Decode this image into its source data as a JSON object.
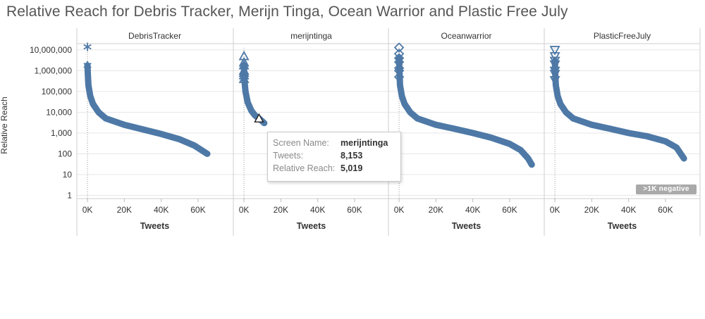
{
  "title": "Relative Reach for Debris Tracker, Merijn Tinga, Ocean Warrior and Plastic Free July",
  "ylabel": "Relative Reach",
  "xlabel": "Tweets",
  "colors": {
    "mark": "#4e79a7",
    "highlight_outline": "#222222",
    "grid": "#e6e6e6",
    "border": "#cfcfcf"
  },
  "chart_data": {
    "type": "scatter",
    "yscale": "log",
    "xlim": [
      -5000,
      78000
    ],
    "ylim": [
      0.7,
      20000000
    ],
    "y_ticks": [
      1,
      10,
      100,
      1000,
      10000,
      100000,
      1000000,
      10000000
    ],
    "y_tick_labels": [
      "1",
      "10",
      "100",
      "1,000",
      "10,000",
      "100,000",
      "1,000,000",
      "10,000,000"
    ],
    "x_ticks": [
      0,
      20000,
      40000,
      60000
    ],
    "x_tick_labels": [
      "0K",
      "20K",
      "40K",
      "60K"
    ],
    "grid": "horizontal",
    "panels": [
      {
        "name": "DebrisTracker",
        "shape": "asterisk",
        "n_points": 65000,
        "curve": [
          [
            0,
            14000000
          ],
          [
            0,
            1800000
          ],
          [
            200,
            700000
          ],
          [
            500,
            200000
          ],
          [
            1500,
            60000
          ],
          [
            3000,
            25000
          ],
          [
            6000,
            10000
          ],
          [
            10000,
            5000
          ],
          [
            20000,
            2500
          ],
          [
            30000,
            1500
          ],
          [
            40000,
            900
          ],
          [
            50000,
            500
          ],
          [
            58000,
            250
          ],
          [
            65000,
            100
          ]
        ]
      },
      {
        "name": "merijntinga",
        "shape": "triangle",
        "n_points": 11000,
        "curve": [
          [
            0,
            5000000
          ],
          [
            0,
            1800000
          ],
          [
            100,
            800000
          ],
          [
            300,
            300000
          ],
          [
            800,
            100000
          ],
          [
            2000,
            30000
          ],
          [
            4000,
            12000
          ],
          [
            6000,
            7000
          ],
          [
            8153,
            5019
          ],
          [
            11000,
            3000
          ]
        ]
      },
      {
        "name": "Oceanwarrior",
        "shape": "diamond",
        "n_points": 72000,
        "curve": [
          [
            0,
            13000000
          ],
          [
            0,
            4000000
          ],
          [
            200,
            1000000
          ],
          [
            500,
            200000
          ],
          [
            1500,
            60000
          ],
          [
            3000,
            25000
          ],
          [
            6000,
            10000
          ],
          [
            10000,
            5000
          ],
          [
            20000,
            2500
          ],
          [
            30000,
            1600
          ],
          [
            40000,
            1000
          ],
          [
            50000,
            600
          ],
          [
            60000,
            300
          ],
          [
            66000,
            150
          ],
          [
            70000,
            60
          ],
          [
            72000,
            30
          ]
        ]
      },
      {
        "name": "PlasticFreeJuly",
        "shape": "triangle-down",
        "n_points": 70000,
        "curve": [
          [
            0,
            10000000
          ],
          [
            0,
            3000000
          ],
          [
            200,
            700000
          ],
          [
            500,
            200000
          ],
          [
            1500,
            60000
          ],
          [
            3000,
            25000
          ],
          [
            6000,
            10000
          ],
          [
            10000,
            5000
          ],
          [
            20000,
            2500
          ],
          [
            30000,
            1600
          ],
          [
            40000,
            1000
          ],
          [
            50000,
            700
          ],
          [
            60000,
            400
          ],
          [
            66000,
            200
          ],
          [
            70000,
            60
          ]
        ]
      }
    ],
    "highlighted_point": {
      "panel": "merijntinga",
      "x": 8153,
      "y": 5019
    }
  },
  "tooltip": {
    "screen_name_label": "Screen Name:",
    "screen_name_value": "merijntinga",
    "tweets_label": "Tweets:",
    "tweets_value": "8,153",
    "reach_label": "Relative Reach:",
    "reach_value": "5,019"
  },
  "badge": ">1K negative"
}
